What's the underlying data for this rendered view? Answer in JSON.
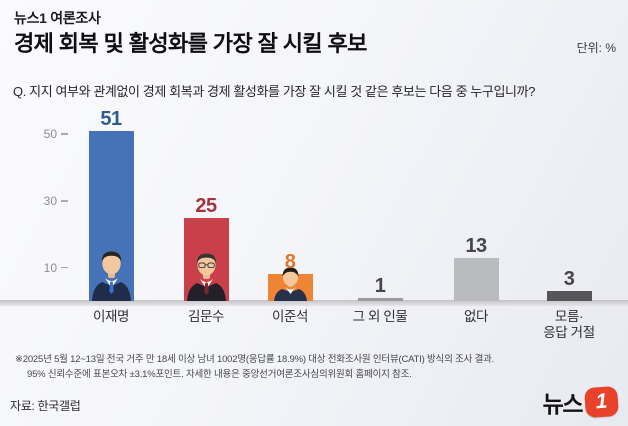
{
  "header": {
    "eyebrow": "뉴스1 여론조사",
    "title": "경제 회복 및 활성화를 가장 잘 시킬 후보",
    "unit": "단위: %",
    "question": "Q. 지지 여부와 관계없이 경제 회복과 경제 활성화를 가장 잘 시킬 것 같은 후보는 다음 중 누구입니까?"
  },
  "chart_data": {
    "type": "bar",
    "title": "경제 회복 및 활성화를 가장 잘 시킬 후보",
    "unit": "%",
    "categories": [
      "이재명",
      "김문수",
      "이준석",
      "그 외 인물",
      "없다",
      "모름·응답 거절"
    ],
    "values": [
      51,
      25,
      8,
      1,
      13,
      3
    ],
    "ylim": [
      0,
      55
    ],
    "yticks": [
      50,
      30,
      10
    ],
    "grid": false,
    "legend": "none",
    "bars": [
      {
        "label": "이재명",
        "value": 51,
        "color": "#4673b8",
        "value_color": "#2b5c93"
      },
      {
        "label": "김문수",
        "value": 25,
        "color": "#c9404a",
        "value_color": "#a2333c"
      },
      {
        "label": "이준석",
        "value": 8,
        "color": "#ef8434",
        "value_color": "#e0772a"
      },
      {
        "label": "그 외 인물",
        "value": 1,
        "color": "#9c9ca0",
        "value_color": "#46464a"
      },
      {
        "label": "없다",
        "value": 13,
        "color": "#babbbe",
        "value_color": "#46464a"
      },
      {
        "label": "모름·",
        "label2": "응답 거절",
        "value": 3,
        "color": "#56555a",
        "value_color": "#46464a"
      }
    ]
  },
  "footnote": {
    "line1": "※2025년 5월 12~13일 전국 거주 만 18세 이상 남녀 1002명(응답률 18.9%) 대상 전화조사원 인터뷰(CATI) 방식의 조사 결과.",
    "line2": "95% 신뢰수준에 표본오차 ±3.1%포인트. 자세한 내용은 중앙선거여론조사심의위원회 홈페이지 참조."
  },
  "source": "자료: 한국갤럽",
  "logo": {
    "text": "뉴스",
    "badge": "1",
    "badge_color": "#e8432a"
  }
}
